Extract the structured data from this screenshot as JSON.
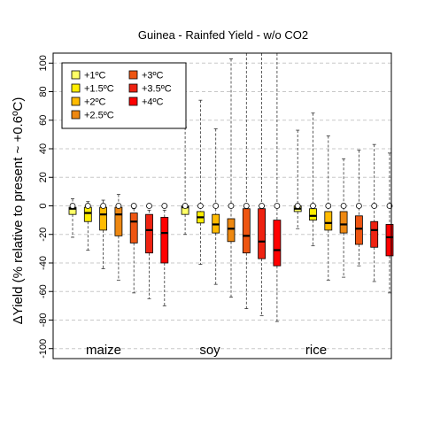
{
  "chart_data": {
    "type": "box",
    "title": "Guinea - Rainfed Yield - w/o CO2",
    "xlabel": "",
    "ylabel": "ΔYield (% relative to present ~ +0.6ºC)",
    "ylim": [
      -107,
      107
    ],
    "yticks": [
      -100,
      -80,
      -60,
      -40,
      -20,
      0,
      20,
      40,
      60,
      80,
      100
    ],
    "grid": "horizontal dashed",
    "legend_position": "top-left",
    "crops": [
      "maize",
      "soy",
      "rice"
    ],
    "series": [
      {
        "name": "+1ºC",
        "color": "#ffff66"
      },
      {
        "name": "+1.5ºC",
        "color": "#ffee00"
      },
      {
        "name": "+2ºC",
        "color": "#ffbb00"
      },
      {
        "name": "+2.5ºC",
        "color": "#ee8811"
      },
      {
        "name": "+3ºC",
        "color": "#ee5511"
      },
      {
        "name": "+3.5ºC",
        "color": "#ee2211"
      },
      {
        "name": "+4ºC",
        "color": "#ff0000"
      }
    ],
    "boxes": [
      {
        "crop": "maize",
        "series": 0,
        "min": -22,
        "q1": -6,
        "median": -2,
        "q3": -1,
        "max": 5
      },
      {
        "crop": "maize",
        "series": 1,
        "min": -31,
        "q1": -11,
        "median": -5,
        "q3": -1,
        "max": 3
      },
      {
        "crop": "maize",
        "series": 2,
        "min": -44,
        "q1": -17,
        "median": -6,
        "q3": -1,
        "max": 4
      },
      {
        "crop": "maize",
        "series": 3,
        "min": -52,
        "q1": -21,
        "median": -6,
        "q3": -1,
        "max": 8
      },
      {
        "crop": "maize",
        "series": 4,
        "min": -61,
        "q1": -26,
        "median": -11,
        "q3": -5,
        "max": -2
      },
      {
        "crop": "maize",
        "series": 5,
        "min": -65,
        "q1": -33,
        "median": -17,
        "q3": -6,
        "max": -3
      },
      {
        "crop": "maize",
        "series": 6,
        "min": -70,
        "q1": -40,
        "median": -19,
        "q3": -8,
        "max": -3
      },
      {
        "crop": "soy",
        "series": 0,
        "min": -20,
        "q1": -6,
        "median": -1,
        "q3": 0,
        "max": 55
      },
      {
        "crop": "soy",
        "series": 1,
        "min": -41,
        "q1": -12,
        "median": -8,
        "q3": -4,
        "max": 74
      },
      {
        "crop": "soy",
        "series": 2,
        "min": -55,
        "q1": -19,
        "median": -13,
        "q3": -6,
        "max": 54
      },
      {
        "crop": "soy",
        "series": 3,
        "min": -64,
        "q1": -25,
        "median": -16,
        "q3": -9,
        "max": 103
      },
      {
        "crop": "soy",
        "series": 4,
        "min": -72,
        "q1": -33,
        "median": -21,
        "q3": -2,
        "max": 107
      },
      {
        "crop": "soy",
        "series": 5,
        "min": -77,
        "q1": -37,
        "median": -25,
        "q3": -2,
        "max": 107
      },
      {
        "crop": "soy",
        "series": 6,
        "min": -81,
        "q1": -42,
        "median": -31,
        "q3": -10,
        "max": 107
      },
      {
        "crop": "rice",
        "series": 0,
        "min": -16,
        "q1": -4,
        "median": -2,
        "q3": 0,
        "max": 53
      },
      {
        "crop": "rice",
        "series": 1,
        "min": -28,
        "q1": -10,
        "median": -7,
        "q3": -2,
        "max": 65
      },
      {
        "crop": "rice",
        "series": 2,
        "min": -52,
        "q1": -17,
        "median": -12,
        "q3": -4,
        "max": 49
      },
      {
        "crop": "rice",
        "series": 3,
        "min": -50,
        "q1": -19,
        "median": -13,
        "q3": -4,
        "max": 33
      },
      {
        "crop": "rice",
        "series": 4,
        "min": -42,
        "q1": -27,
        "median": -16,
        "q3": -7,
        "max": 39
      },
      {
        "crop": "rice",
        "series": 5,
        "min": -53,
        "q1": -29,
        "median": -17,
        "q3": -11,
        "max": 43
      },
      {
        "crop": "rice",
        "series": 6,
        "min": -61,
        "q1": -35,
        "median": -22,
        "q3": -13,
        "max": 37
      }
    ]
  }
}
